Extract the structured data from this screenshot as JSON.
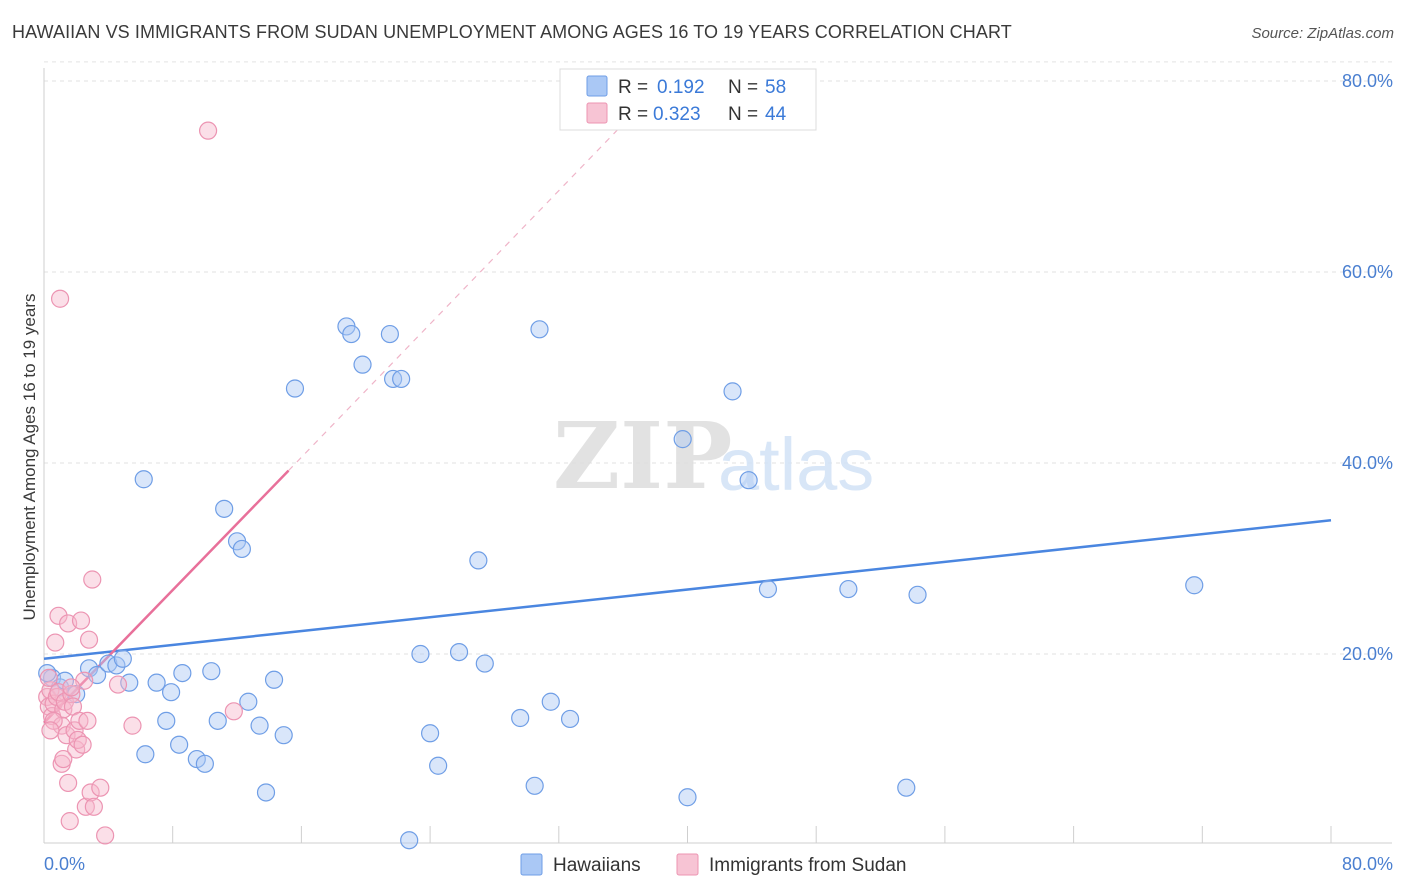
{
  "chart_data": {
    "type": "scatter",
    "title": "HAWAIIAN VS IMMIGRANTS FROM SUDAN UNEMPLOYMENT AMONG AGES 16 TO 19 YEARS CORRELATION CHART",
    "source": "Source: ZipAtlas.com",
    "xlabel": "",
    "ylabel": "Unemployment Among Ages 16 to 19 years",
    "xlim": [
      0,
      80
    ],
    "ylim": [
      0,
      82
    ],
    "x_tick_labels": [
      "0.0%",
      "80.0%"
    ],
    "y_ticks": [
      20,
      40,
      60,
      80
    ],
    "y_tick_labels": [
      "20.0%",
      "40.0%",
      "60.0%",
      "80.0%"
    ],
    "grid": true,
    "watermark": {
      "zip": "ZIP",
      "atlas": "atlas"
    },
    "colors": {
      "hawaiians": "#4a86e0",
      "sudan": "#e8709a",
      "hawaiians_fill": "#aac8f5",
      "sudan_fill": "#f7b8cc"
    },
    "legend_stats": [
      {
        "r_label": "R =",
        "r_value": "0.192",
        "n_label": "N =",
        "n_value": "58"
      },
      {
        "r_label": "R =",
        "r_value": "0.323",
        "n_label": "N =",
        "n_value": "44"
      }
    ],
    "series": [
      {
        "name": "Hawaiians",
        "trend": {
          "x": [
            0,
            80
          ],
          "y": [
            19.5,
            34.0
          ],
          "style": "solid"
        },
        "points": [
          [
            0.5,
            17.5
          ],
          [
            1.0,
            16.5
          ],
          [
            1.3,
            17.2
          ],
          [
            2.0,
            15.8
          ],
          [
            2.8,
            18.5
          ],
          [
            3.3,
            17.8
          ],
          [
            4.0,
            19.0
          ],
          [
            4.5,
            18.8
          ],
          [
            4.9,
            19.5
          ],
          [
            5.3,
            17.0
          ],
          [
            6.2,
            38.3
          ],
          [
            6.3,
            9.5
          ],
          [
            7.0,
            17.0
          ],
          [
            7.6,
            13.0
          ],
          [
            7.9,
            16.0
          ],
          [
            8.4,
            10.5
          ],
          [
            8.6,
            18.0
          ],
          [
            9.5,
            9.0
          ],
          [
            10.0,
            8.5
          ],
          [
            10.4,
            18.2
          ],
          [
            10.8,
            13.0
          ],
          [
            11.2,
            35.2
          ],
          [
            12.0,
            31.8
          ],
          [
            12.3,
            31.0
          ],
          [
            12.7,
            15.0
          ],
          [
            13.4,
            12.5
          ],
          [
            13.8,
            5.5
          ],
          [
            14.3,
            17.3
          ],
          [
            14.9,
            11.5
          ],
          [
            15.6,
            47.8
          ],
          [
            18.8,
            54.3
          ],
          [
            19.1,
            53.5
          ],
          [
            19.8,
            50.3
          ],
          [
            21.5,
            53.5
          ],
          [
            21.7,
            48.8
          ],
          [
            22.2,
            48.8
          ],
          [
            22.7,
            0.5
          ],
          [
            23.4,
            20.0
          ],
          [
            24.0,
            11.7
          ],
          [
            24.5,
            8.3
          ],
          [
            25.8,
            20.2
          ],
          [
            27.0,
            29.8
          ],
          [
            27.4,
            19.0
          ],
          [
            29.6,
            13.3
          ],
          [
            30.5,
            6.2
          ],
          [
            30.8,
            54.0
          ],
          [
            31.5,
            15.0
          ],
          [
            32.7,
            13.2
          ],
          [
            39.7,
            42.5
          ],
          [
            40.0,
            5.0
          ],
          [
            42.8,
            47.5
          ],
          [
            43.8,
            38.2
          ],
          [
            45.0,
            26.8
          ],
          [
            50.0,
            26.8
          ],
          [
            53.6,
            6.0
          ],
          [
            54.3,
            26.2
          ],
          [
            71.5,
            27.2
          ],
          [
            0.2,
            18.0
          ]
        ]
      },
      {
        "name": "Immigrants from Sudan",
        "trend": {
          "x": [
            0,
            15.2
          ],
          "y": [
            12.8,
            39.2
          ],
          "style": "solid",
          "extension": {
            "x": [
              15.2,
              36.0
            ],
            "y": [
              39.2,
              75.5
            ],
            "style": "dashed"
          }
        },
        "points": [
          [
            0.2,
            15.5
          ],
          [
            0.3,
            14.5
          ],
          [
            0.4,
            16.2
          ],
          [
            0.5,
            13.5
          ],
          [
            0.6,
            14.8
          ],
          [
            0.7,
            21.2
          ],
          [
            0.8,
            15.5
          ],
          [
            0.9,
            16.0
          ],
          [
            0.9,
            24.0
          ],
          [
            1.0,
            57.2
          ],
          [
            1.1,
            8.5
          ],
          [
            1.1,
            12.5
          ],
          [
            1.2,
            14.2
          ],
          [
            1.3,
            15.0
          ],
          [
            1.4,
            11.5
          ],
          [
            1.5,
            23.2
          ],
          [
            1.5,
            6.5
          ],
          [
            1.6,
            2.5
          ],
          [
            1.7,
            15.8
          ],
          [
            1.8,
            14.5
          ],
          [
            1.9,
            12.0
          ],
          [
            2.0,
            10.0
          ],
          [
            2.1,
            11.0
          ],
          [
            2.2,
            13.0
          ],
          [
            2.3,
            23.5
          ],
          [
            2.4,
            10.5
          ],
          [
            2.5,
            17.2
          ],
          [
            2.6,
            4.0
          ],
          [
            2.7,
            13.0
          ],
          [
            2.8,
            21.5
          ],
          [
            2.9,
            5.5
          ],
          [
            3.0,
            27.8
          ],
          [
            3.1,
            4.0
          ],
          [
            3.5,
            6.0
          ],
          [
            3.8,
            1.0
          ],
          [
            4.6,
            16.8
          ],
          [
            5.5,
            12.5
          ],
          [
            10.2,
            74.8
          ],
          [
            11.8,
            14.0
          ],
          [
            0.3,
            17.5
          ],
          [
            0.6,
            13.0
          ],
          [
            1.2,
            9.0
          ],
          [
            0.4,
            12.0
          ],
          [
            1.7,
            16.5
          ]
        ]
      }
    ]
  },
  "bottom_legend": {
    "items": [
      "Hawaiians",
      "Immigrants from Sudan"
    ]
  }
}
